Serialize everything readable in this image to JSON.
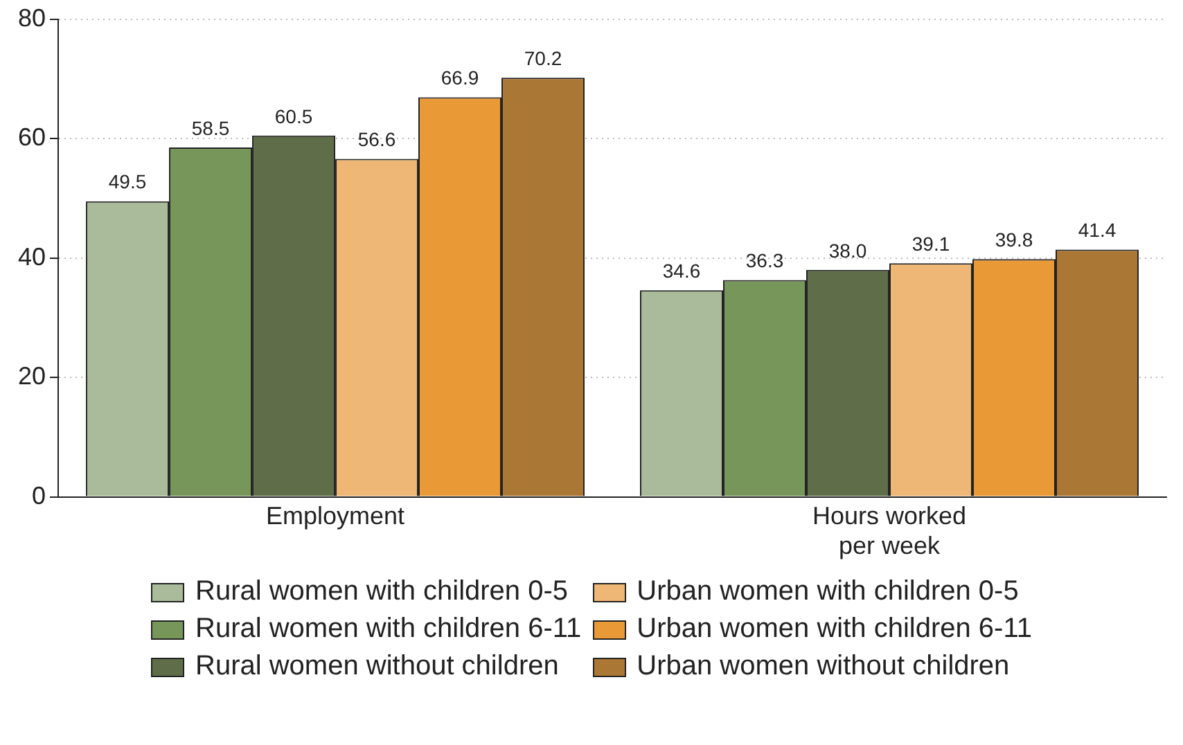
{
  "chart_data": {
    "type": "bar",
    "categories": [
      "Employment",
      "Hours worked per week"
    ],
    "series": [
      {
        "name": "Rural women with children 0-5",
        "color": "#aabb9b",
        "values": [
          49.5,
          34.6
        ],
        "value_labels": [
          "49.5",
          "34.6"
        ]
      },
      {
        "name": "Rural women with children 6-11",
        "color": "#76965a",
        "values": [
          58.5,
          36.3
        ],
        "value_labels": [
          "58.5",
          "36.3"
        ]
      },
      {
        "name": "Rural women without children",
        "color": "#5f6e49",
        "values": [
          60.5,
          38.0
        ],
        "value_labels": [
          "60.5",
          "38.0"
        ]
      },
      {
        "name": "Urban women with children 0-5",
        "color": "#efb775",
        "values": [
          56.6,
          39.1
        ],
        "value_labels": [
          "56.6",
          "39.1"
        ]
      },
      {
        "name": "Urban women with children 6-11",
        "color": "#e99a37",
        "values": [
          66.9,
          39.8
        ],
        "value_labels": [
          "66.9",
          "39.8"
        ]
      },
      {
        "name": "Urban women without children",
        "color": "#ab7734",
        "values": [
          70.2,
          41.4
        ],
        "value_labels": [
          "70.2",
          "41.4"
        ]
      }
    ],
    "ylim": [
      0,
      80
    ],
    "yticks": [
      0,
      20,
      40,
      60,
      80
    ],
    "grid": "y",
    "legend": "bottom"
  }
}
